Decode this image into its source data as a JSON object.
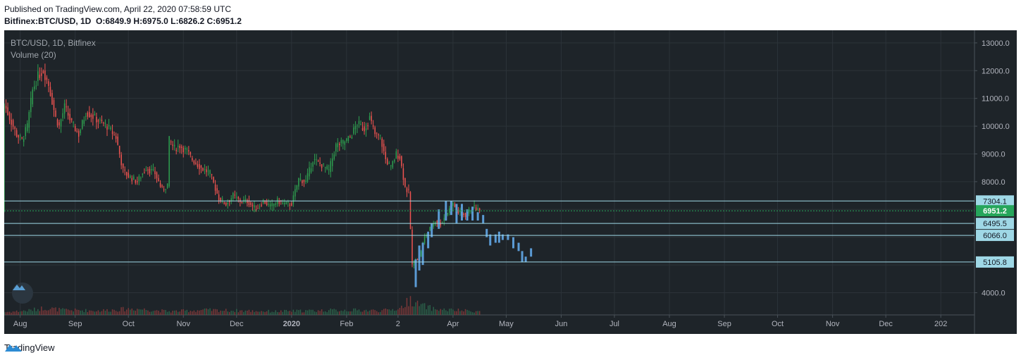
{
  "header": {
    "published": "Published on TradingView.com, April 22, 2020 07:58:59 UTC",
    "symbol": "Bitfinex:BTC/USD, 1D",
    "o_label": "O:",
    "o_value": "6849.9",
    "h_label": "H:",
    "h_value": "6975.0",
    "l_label": "L:",
    "l_value": "6826.2",
    "c_label": "C:",
    "c_value": "6951.2"
  },
  "overlay": {
    "title": "BTC/USD, 1D, Bitfinex",
    "volume": "Volume (20)"
  },
  "footer": {
    "brand": "TradingView"
  },
  "colors": {
    "background": "#1e2429",
    "grid": "#2c3339",
    "up": "#26a69a",
    "up_body": "#2e9e4f",
    "down": "#ef5350",
    "projection": "#5b9bd5",
    "level_line": "#9fd8e6",
    "current_price": "#26a65b",
    "axis_text": "#b2b5be"
  },
  "chart_data": {
    "type": "candlestick",
    "title": "BTC/USD, 1D, Bitfinex",
    "y_ticks": [
      4000,
      5000,
      6000,
      7000,
      8000,
      9000,
      10000,
      11000,
      12000,
      13000
    ],
    "y_tick_labels": [
      "4000.0",
      "",
      "",
      "",
      "8000.0",
      "9000.0",
      "10000.0",
      "11000.0",
      "12000.0",
      "13000.0"
    ],
    "ylim": [
      3200,
      13200
    ],
    "x_tick_labels": [
      "Aug",
      "Sep",
      "Oct",
      "Nov",
      "Dec",
      "2020",
      "Feb",
      "2",
      "Apr",
      "May",
      "Jun",
      "Jul",
      "Aug",
      "Sep",
      "Oct",
      "Nov",
      "Dec",
      "202"
    ],
    "x_tick_days": [
      -4,
      27,
      57,
      88,
      118,
      149,
      180,
      209,
      240,
      270,
      301,
      331,
      362,
      393,
      423,
      454,
      484,
      515
    ],
    "x_start_date": "2019-08-04",
    "xlim_days": [
      -13,
      534
    ],
    "price_levels": [
      {
        "label": "7304.1",
        "value": 7304.1,
        "kind": "level"
      },
      {
        "label": "6951.2",
        "value": 6951.2,
        "kind": "current"
      },
      {
        "label": "6495.5",
        "value": 6495.5,
        "kind": "level"
      },
      {
        "label": "6066.0",
        "value": 6066.0,
        "kind": "level"
      },
      {
        "label": "5105.8",
        "value": 5105.8,
        "kind": "level"
      }
    ],
    "price_anchors": [
      [
        -13,
        10800
      ],
      [
        -10,
        10300
      ],
      [
        -6,
        9700
      ],
      [
        -3,
        9500
      ],
      [
        0,
        10000
      ],
      [
        3,
        11300
      ],
      [
        6,
        11800
      ],
      [
        9,
        12000
      ],
      [
        12,
        11500
      ],
      [
        16,
        10300
      ],
      [
        18,
        10000
      ],
      [
        21,
        10700
      ],
      [
        25,
        10100
      ],
      [
        29,
        9700
      ],
      [
        33,
        10500
      ],
      [
        36,
        10400
      ],
      [
        40,
        10200
      ],
      [
        45,
        10000
      ],
      [
        50,
        9600
      ],
      [
        54,
        8400
      ],
      [
        57,
        8200
      ],
      [
        62,
        8000
      ],
      [
        67,
        8500
      ],
      [
        72,
        8300
      ],
      [
        76,
        7700
      ],
      [
        79,
        7900
      ],
      [
        80,
        9500
      ],
      [
        83,
        9200
      ],
      [
        86,
        9300
      ],
      [
        90,
        9100
      ],
      [
        93,
        8800
      ],
      [
        98,
        8500
      ],
      [
        103,
        8300
      ],
      [
        108,
        7400
      ],
      [
        112,
        7200
      ],
      [
        116,
        7500
      ],
      [
        120,
        7300
      ],
      [
        124,
        7300
      ],
      [
        129,
        7000
      ],
      [
        133,
        7300
      ],
      [
        137,
        7100
      ],
      [
        141,
        7300
      ],
      [
        145,
        7200
      ],
      [
        149,
        7200
      ],
      [
        153,
        8100
      ],
      [
        157,
        8000
      ],
      [
        161,
        8800
      ],
      [
        166,
        8600
      ],
      [
        170,
        8400
      ],
      [
        174,
        9300
      ],
      [
        178,
        9400
      ],
      [
        182,
        9600
      ],
      [
        186,
        10100
      ],
      [
        190,
        9900
      ],
      [
        193,
        10300
      ],
      [
        196,
        9700
      ],
      [
        199,
        9600
      ],
      [
        202,
        8800
      ],
      [
        205,
        8500
      ],
      [
        208,
        9000
      ],
      [
        210,
        8900
      ],
      [
        213,
        7800
      ],
      [
        215,
        7600
      ],
      [
        217,
        5000
      ],
      [
        219,
        5200
      ],
      [
        221,
        5300
      ],
      [
        224,
        6000
      ],
      [
        227,
        6300
      ],
      [
        230,
        6600
      ],
      [
        233,
        6500
      ],
      [
        236,
        6800
      ],
      [
        240,
        7200
      ],
      [
        243,
        6900
      ],
      [
        247,
        6800
      ],
      [
        251,
        7100
      ],
      [
        255,
        6950
      ]
    ],
    "projection_bars": [
      [
        232,
        6300,
        7000
      ],
      [
        236,
        6600,
        7300
      ],
      [
        239,
        6800,
        7300
      ],
      [
        242,
        6500,
        7200
      ],
      [
        245,
        6600,
        7200
      ],
      [
        248,
        6600,
        7000
      ],
      [
        251,
        6600,
        7100
      ],
      [
        254,
        6600,
        6900
      ],
      [
        257,
        6500,
        6800
      ],
      [
        259,
        6000,
        6300
      ],
      [
        261,
        5700,
        6100
      ],
      [
        264,
        5800,
        6100
      ],
      [
        266,
        5800,
        6200
      ],
      [
        268,
        5900,
        6100
      ],
      [
        271,
        5900,
        6100
      ],
      [
        274,
        5600,
        6000
      ],
      [
        277,
        5500,
        5800
      ],
      [
        279,
        5100,
        5500
      ],
      [
        281,
        5100,
        5300
      ],
      [
        284,
        5300,
        5600
      ]
    ],
    "early_projection_bars": [
      [
        219,
        4200,
        5200
      ],
      [
        221,
        4800,
        5700
      ],
      [
        223,
        5000,
        5800
      ],
      [
        226,
        5600,
        6200
      ],
      [
        228,
        6000,
        6500
      ]
    ],
    "volume_profile": [
      [
        -13,
        0.4
      ],
      [
        0,
        0.6
      ],
      [
        10,
        1.0
      ],
      [
        20,
        0.7
      ],
      [
        40,
        0.6
      ],
      [
        60,
        0.9
      ],
      [
        80,
        0.5
      ],
      [
        100,
        0.7
      ],
      [
        120,
        0.6
      ],
      [
        140,
        0.5
      ],
      [
        160,
        0.6
      ],
      [
        180,
        0.7
      ],
      [
        200,
        0.6
      ],
      [
        210,
        0.9
      ],
      [
        216,
        2.2
      ],
      [
        220,
        1.5
      ],
      [
        230,
        0.8
      ],
      [
        255,
        0.5
      ]
    ]
  }
}
